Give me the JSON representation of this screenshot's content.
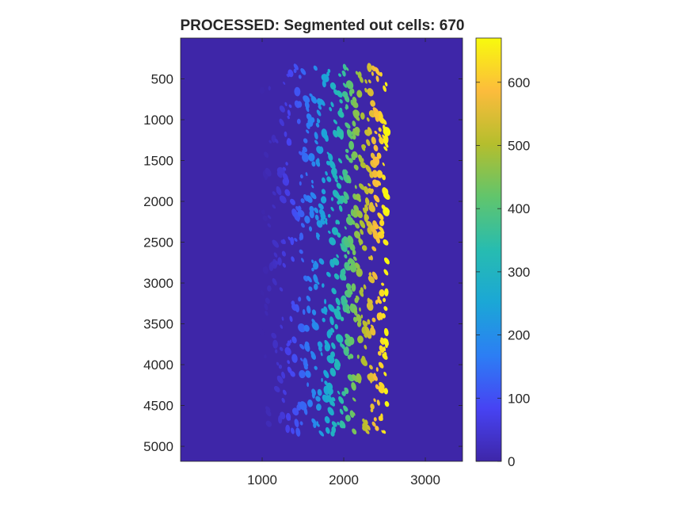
{
  "chart_data": {
    "type": "heatmap",
    "title": "PROCESSED: Segmented out cells: 670",
    "xlabel": "",
    "ylabel": "",
    "x_range": [
      0,
      3456
    ],
    "y_range": [
      0,
      5184
    ],
    "y_direction": "reverse",
    "x_ticks": [
      1000,
      2000,
      3000
    ],
    "y_ticks": [
      500,
      1000,
      1500,
      2000,
      2500,
      3000,
      3500,
      4000,
      4500,
      5000
    ],
    "background_value": 0,
    "cell_count": 670,
    "cell_region": {
      "x_min": 980,
      "x_max": 2530,
      "y_min": 350,
      "y_max": 4860
    },
    "label_ordering": "labels increase left-to-right across the cell band",
    "colormap": "parula",
    "colormap_stops": [
      "#3e26a8",
      "#4743f3",
      "#2c7ef4",
      "#1ba7d6",
      "#27bcb0",
      "#61c56c",
      "#b5be2d",
      "#fcbc3c",
      "#f8fa0d"
    ],
    "colorbar": {
      "range": [
        0,
        670
      ],
      "ticks": [
        0,
        100,
        200,
        300,
        400,
        500,
        600
      ]
    }
  }
}
